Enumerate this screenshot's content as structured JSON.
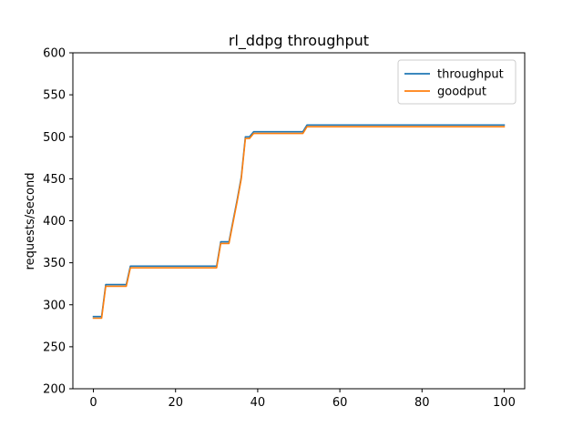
{
  "chart_data": {
    "type": "line",
    "title": "rl_ddpg throughput",
    "xlabel": "",
    "ylabel": "requests/second",
    "xlim": [
      -5,
      105
    ],
    "ylim": [
      200,
      600
    ],
    "xticks": [
      0,
      20,
      40,
      60,
      80,
      100
    ],
    "yticks": [
      200,
      250,
      300,
      350,
      400,
      450,
      500,
      550,
      600
    ],
    "grid": false,
    "legend_position": "top-right",
    "series": [
      {
        "name": "throughput",
        "color": "#1f77b4",
        "x": [
          0,
          2,
          3,
          8,
          9,
          30,
          31,
          33,
          34,
          35,
          36,
          37,
          38,
          39,
          51,
          52,
          100
        ],
        "y": [
          286,
          286,
          324,
          324,
          346,
          346,
          375,
          375,
          400,
          425,
          452,
          500,
          500,
          506,
          506,
          514,
          514
        ]
      },
      {
        "name": "goodput",
        "color": "#ff7f0e",
        "x": [
          0,
          2,
          3,
          8,
          9,
          30,
          31,
          33,
          34,
          35,
          36,
          37,
          38,
          39,
          51,
          52,
          100
        ],
        "y": [
          284,
          284,
          322,
          322,
          344,
          344,
          373,
          373,
          398,
          423,
          450,
          498,
          498,
          504,
          504,
          512,
          512
        ]
      }
    ]
  }
}
